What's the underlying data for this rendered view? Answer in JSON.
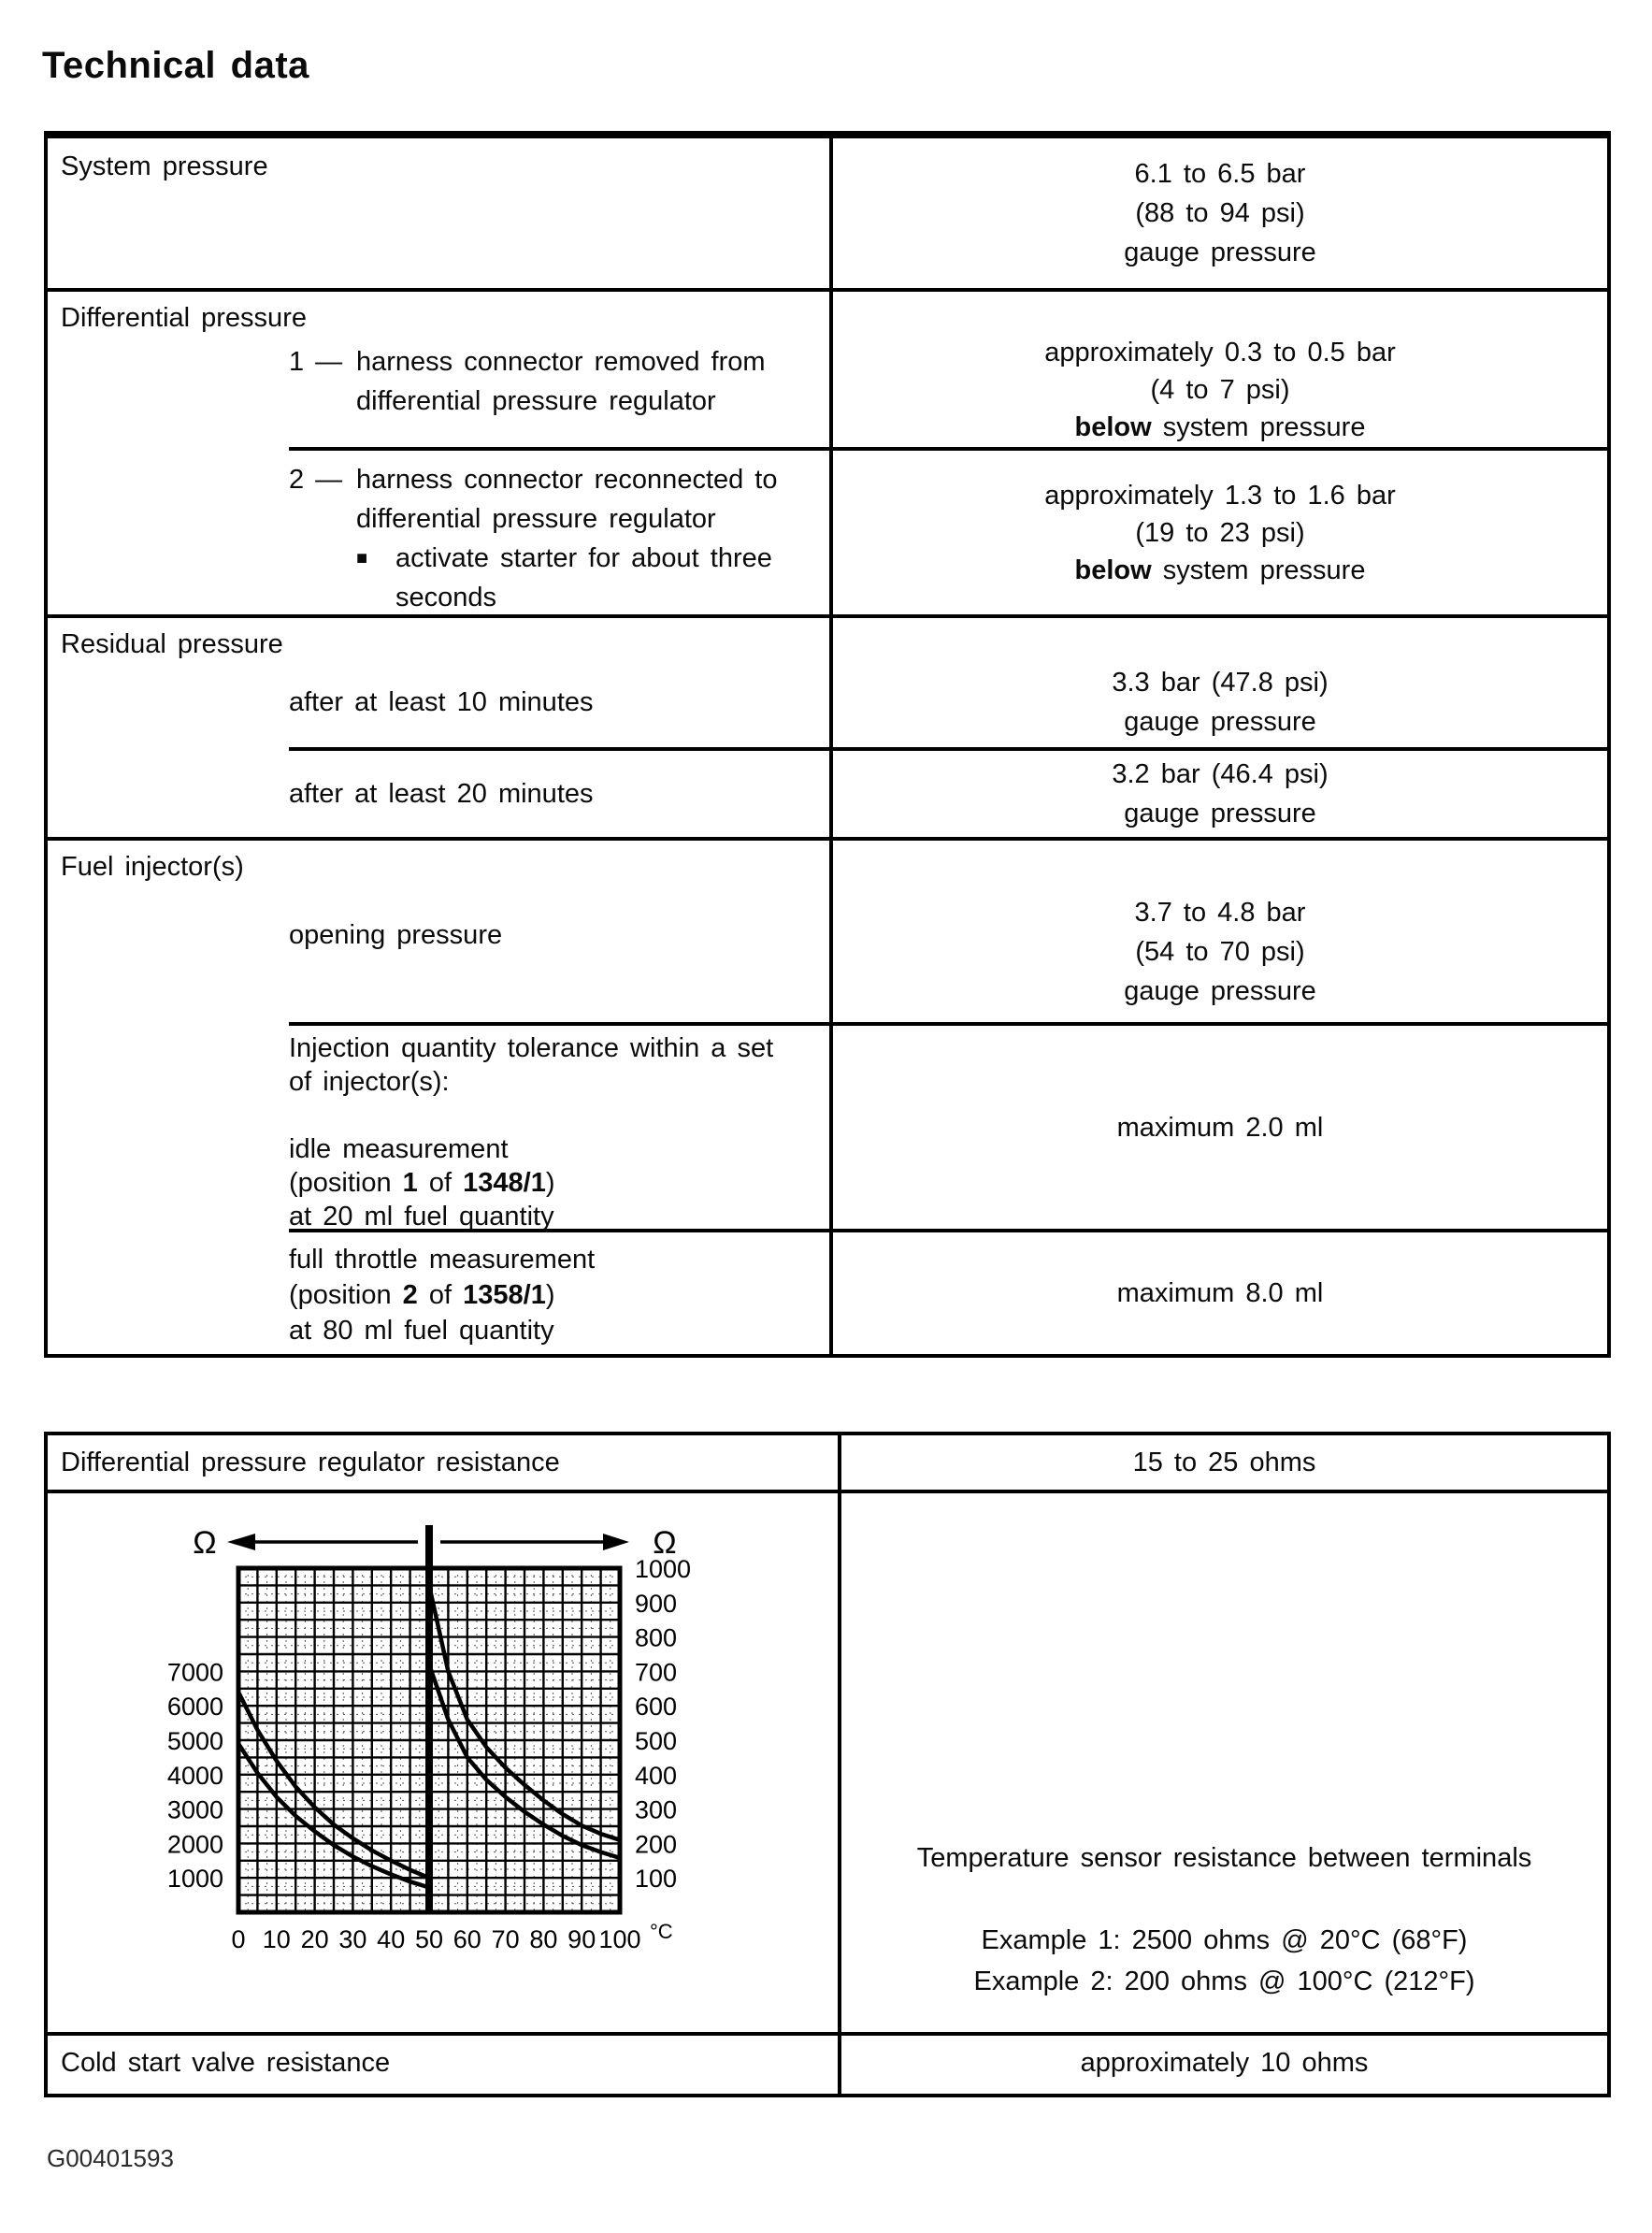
{
  "page": {
    "title": "Technical data",
    "footer": "G00401593"
  },
  "t1": {
    "s1": {
      "header": "System pressure",
      "value": [
        "6.1 to 6.5 bar",
        "(88 to 94 psi)",
        "gauge pressure"
      ]
    },
    "s2": {
      "header": "Differential pressure",
      "r1": {
        "num": "1 —",
        "text": [
          "harness connector removed from",
          "differential pressure regulator"
        ],
        "value": [
          [
            [
              "approximately 0.3 to 0.5 bar",
              0
            ]
          ],
          [
            [
              "(4 to 7 psi)",
              0
            ]
          ],
          [
            [
              "below",
              1
            ],
            [
              " system pressure",
              0
            ]
          ]
        ]
      },
      "r2": {
        "num": "2 —",
        "text": [
          "harness connector reconnected to",
          "differential pressure regulator"
        ],
        "bullet": "■",
        "bullet_text": [
          "activate starter for about three",
          "seconds"
        ],
        "value": [
          [
            [
              "approximately 1.3 to 1.6 bar",
              0
            ]
          ],
          [
            [
              "(19 to 23 psi)",
              0
            ]
          ],
          [
            [
              "below",
              1
            ],
            [
              " system pressure",
              0
            ]
          ]
        ]
      }
    },
    "s3": {
      "header": "Residual pressure",
      "r1": {
        "text": [
          "after at least 10 minutes"
        ],
        "value": [
          "3.3 bar (47.8 psi)",
          "gauge pressure"
        ]
      },
      "r2": {
        "text": [
          "after at least 20 minutes"
        ],
        "value": [
          "3.2 bar (46.4 psi)",
          "gauge pressure"
        ]
      }
    },
    "s4": {
      "header": "Fuel injector(s)",
      "r1": {
        "text": [
          "opening pressure"
        ],
        "value": [
          "3.7 to 4.8 bar",
          "(54 to 70 psi)",
          "gauge pressure"
        ]
      },
      "r2": {
        "text": [
          [
            [
              "Injection quantity tolerance within a set",
              0
            ]
          ],
          [
            [
              "of injector(s):",
              0
            ]
          ],
          [],
          [
            [
              "idle measurement",
              0
            ]
          ],
          [
            [
              "(position ",
              0
            ],
            [
              "1",
              1
            ],
            [
              " of ",
              0
            ],
            [
              "1348/1",
              1
            ],
            [
              ")",
              0
            ]
          ],
          [
            [
              "at 20 ml fuel quantity",
              0
            ]
          ]
        ],
        "value": [
          "maximum 2.0 ml"
        ]
      },
      "r3": {
        "text": [
          [
            [
              "full throttle measurement",
              0
            ]
          ],
          [
            [
              "(position ",
              0
            ],
            [
              "2",
              1
            ],
            [
              " of ",
              0
            ],
            [
              "1358/1",
              1
            ],
            [
              ")",
              0
            ]
          ],
          [
            [
              "at 80 ml fuel quantity",
              0
            ]
          ]
        ],
        "value": [
          "maximum 8.0 ml"
        ]
      }
    }
  },
  "t2": {
    "r1": {
      "left": "Differential pressure regulator resistance",
      "right": "15 to 25 ohms"
    },
    "r2": {
      "right": [
        "Temperature sensor resistance between terminals",
        "",
        "Example 1: 2500 ohms @ 20°C (68°F)",
        "Example 2: 200 ohms @ 100°C (212°F)"
      ]
    },
    "r3": {
      "left": "Cold start valve resistance",
      "right": "approximately 10 ohms"
    }
  },
  "chart_data": {
    "type": "line",
    "title": "Temperature sensor resistance vs temperature (tolerance band, dual ohm scales)",
    "x_unit": "°C",
    "y_unit_left": "Ω",
    "y_unit_right": "Ω",
    "x_ticks": [
      0,
      10,
      20,
      30,
      40,
      50,
      60,
      70,
      80,
      90,
      100
    ],
    "left_axis": {
      "ticks": [
        1000,
        2000,
        3000,
        4000,
        5000,
        6000,
        7000
      ],
      "range": [
        0,
        10000
      ],
      "applies_to_x": "0-50"
    },
    "right_axis": {
      "ticks": [
        100,
        200,
        300,
        400,
        500,
        600,
        700,
        800,
        900,
        1000
      ],
      "range": [
        0,
        1000
      ],
      "applies_to_x": "50-100"
    },
    "split_x": 50,
    "grid": "on",
    "series": [
      {
        "name": "upper-tolerance-0-50C",
        "axis": "left",
        "points": [
          [
            0,
            6400
          ],
          [
            5,
            5300
          ],
          [
            10,
            4400
          ],
          [
            15,
            3650
          ],
          [
            20,
            3050
          ],
          [
            25,
            2550
          ],
          [
            30,
            2150
          ],
          [
            35,
            1800
          ],
          [
            40,
            1500
          ],
          [
            45,
            1230
          ],
          [
            50,
            1000
          ]
        ]
      },
      {
        "name": "lower-tolerance-0-50C",
        "axis": "left",
        "points": [
          [
            0,
            4900
          ],
          [
            5,
            4050
          ],
          [
            10,
            3350
          ],
          [
            15,
            2800
          ],
          [
            20,
            2350
          ],
          [
            25,
            1950
          ],
          [
            30,
            1620
          ],
          [
            35,
            1340
          ],
          [
            40,
            1100
          ],
          [
            45,
            890
          ],
          [
            50,
            720
          ]
        ]
      },
      {
        "name": "upper-tolerance-50-100C",
        "axis": "right",
        "points": [
          [
            50,
            950
          ],
          [
            55,
            700
          ],
          [
            60,
            560
          ],
          [
            65,
            480
          ],
          [
            70,
            420
          ],
          [
            75,
            370
          ],
          [
            80,
            325
          ],
          [
            85,
            285
          ],
          [
            90,
            252
          ],
          [
            95,
            228
          ],
          [
            100,
            210
          ]
        ]
      },
      {
        "name": "lower-tolerance-50-100C",
        "axis": "right",
        "points": [
          [
            50,
            720
          ],
          [
            55,
            560
          ],
          [
            60,
            450
          ],
          [
            65,
            385
          ],
          [
            70,
            335
          ],
          [
            75,
            292
          ],
          [
            80,
            255
          ],
          [
            85,
            222
          ],
          [
            90,
            195
          ],
          [
            95,
            175
          ],
          [
            100,
            158
          ]
        ]
      }
    ]
  }
}
